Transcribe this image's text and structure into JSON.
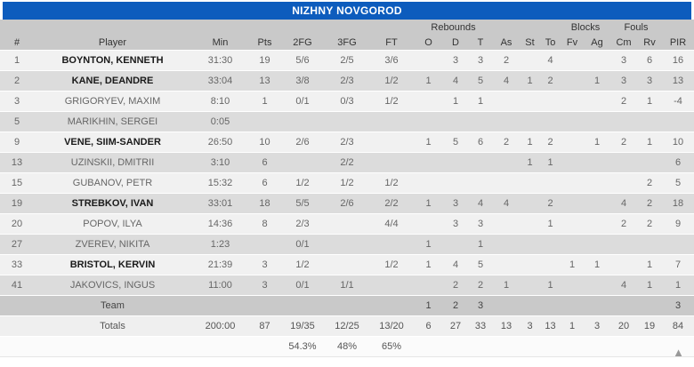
{
  "title": "NIZHNY NOVGOROD",
  "colors": {
    "accent_blue": "#0d5cbd",
    "header_gray": "#c9c9c9",
    "row_light": "#f1f1f1",
    "row_dark": "#dcdcdc"
  },
  "footer": {
    "collapse_icon": "▲"
  },
  "table": {
    "group_headers": [
      {
        "label": "",
        "span": 7
      },
      {
        "label": "Rebounds",
        "span": 3
      },
      {
        "label": "",
        "span": 3
      },
      {
        "label": "Blocks",
        "span": 2
      },
      {
        "label": "Fouls",
        "span": 2
      },
      {
        "label": "",
        "span": 1
      }
    ],
    "columns": [
      "#",
      "Player",
      "Min",
      "Pts",
      "2FG",
      "3FG",
      "FT",
      "O",
      "D",
      "T",
      "As",
      "St",
      "To",
      "Fv",
      "Ag",
      "Cm",
      "Rv",
      "PIR"
    ],
    "rows": [
      {
        "number": "1",
        "player": "BOYNTON, KENNETH",
        "starter": true,
        "cells": [
          "31:30",
          "19",
          "5/6",
          "2/5",
          "3/6",
          "",
          "3",
          "3",
          "2",
          "",
          "4",
          "",
          "",
          "3",
          "6",
          "16"
        ]
      },
      {
        "number": "2",
        "player": "KANE, DEANDRE",
        "starter": true,
        "cells": [
          "33:04",
          "13",
          "3/8",
          "2/3",
          "1/2",
          "1",
          "4",
          "5",
          "4",
          "1",
          "2",
          "",
          "1",
          "3",
          "3",
          "13"
        ]
      },
      {
        "number": "3",
        "player": "GRIGORYEV, MAXIM",
        "starter": false,
        "cells": [
          "8:10",
          "1",
          "0/1",
          "0/3",
          "1/2",
          "",
          "1",
          "1",
          "",
          "",
          "",
          "",
          "",
          "2",
          "1",
          "-4"
        ]
      },
      {
        "number": "5",
        "player": "MARIKHIN, SERGEI",
        "starter": false,
        "cells": [
          "0:05",
          "",
          "",
          "",
          "",
          "",
          "",
          "",
          "",
          "",
          "",
          "",
          "",
          "",
          "",
          ""
        ]
      },
      {
        "number": "9",
        "player": "VENE, SIIM-SANDER",
        "starter": true,
        "cells": [
          "26:50",
          "10",
          "2/6",
          "2/3",
          "",
          "1",
          "5",
          "6",
          "2",
          "1",
          "2",
          "",
          "1",
          "2",
          "1",
          "10"
        ]
      },
      {
        "number": "13",
        "player": "UZINSKII, DMITRII",
        "starter": false,
        "cells": [
          "3:10",
          "6",
          "",
          "2/2",
          "",
          "",
          "",
          "",
          "",
          "1",
          "1",
          "",
          "",
          "",
          "",
          "6"
        ]
      },
      {
        "number": "15",
        "player": "GUBANOV, PETR",
        "starter": false,
        "cells": [
          "15:32",
          "6",
          "1/2",
          "1/2",
          "1/2",
          "",
          "",
          "",
          "",
          "",
          "",
          "",
          "",
          "",
          "2",
          "5"
        ]
      },
      {
        "number": "19",
        "player": "STREBKOV, IVAN",
        "starter": true,
        "cells": [
          "33:01",
          "18",
          "5/5",
          "2/6",
          "2/2",
          "1",
          "3",
          "4",
          "4",
          "",
          "2",
          "",
          "",
          "4",
          "2",
          "18"
        ]
      },
      {
        "number": "20",
        "player": "POPOV, ILYA",
        "starter": false,
        "cells": [
          "14:36",
          "8",
          "2/3",
          "",
          "4/4",
          "",
          "3",
          "3",
          "",
          "",
          "1",
          "",
          "",
          "2",
          "2",
          "9"
        ]
      },
      {
        "number": "27",
        "player": "ZVEREV, NIKITA",
        "starter": false,
        "cells": [
          "1:23",
          "",
          "0/1",
          "",
          "",
          "1",
          "",
          "1",
          "",
          "",
          "",
          "",
          "",
          "",
          "",
          ""
        ]
      },
      {
        "number": "33",
        "player": "BRISTOL, KERVIN",
        "starter": true,
        "cells": [
          "21:39",
          "3",
          "1/2",
          "",
          "1/2",
          "1",
          "4",
          "5",
          "",
          "",
          "",
          "1",
          "1",
          "",
          "1",
          "7"
        ]
      },
      {
        "number": "41",
        "player": "JAKOVICS, INGUS",
        "starter": false,
        "cells": [
          "11:00",
          "3",
          "0/1",
          "1/1",
          "",
          "",
          "2",
          "2",
          "1",
          "",
          "1",
          "",
          "",
          "4",
          "1",
          "1"
        ]
      }
    ],
    "team_row": {
      "label": "Team",
      "cells": [
        "",
        "",
        "",
        "",
        "",
        "1",
        "2",
        "3",
        "",
        "",
        "",
        "",
        "",
        "",
        "",
        "3"
      ]
    },
    "totals_row": {
      "label": "Totals",
      "cells": [
        "200:00",
        "87",
        "19/35",
        "12/25",
        "13/20",
        "6",
        "27",
        "33",
        "13",
        "3",
        "13",
        "1",
        "3",
        "20",
        "19",
        "84"
      ]
    },
    "percentages_row": {
      "label": "",
      "cells": [
        "",
        "",
        "54.3%",
        "48%",
        "65%",
        "",
        "",
        "",
        "",
        "",
        "",
        "",
        "",
        "",
        "",
        ""
      ]
    }
  }
}
